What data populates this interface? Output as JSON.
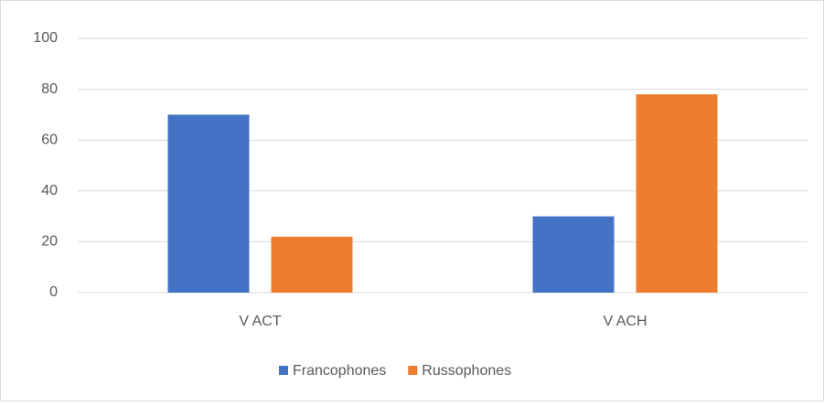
{
  "chart_data": {
    "type": "bar",
    "categories": [
      "V ACT",
      "V ACH"
    ],
    "series": [
      {
        "name": "Francophones",
        "color": "#4472c4",
        "values": [
          70,
          30
        ]
      },
      {
        "name": "Russophones",
        "color": "#ed7d31",
        "values": [
          22,
          78
        ]
      }
    ],
    "ylim": [
      0,
      100
    ],
    "yticks": [
      0,
      20,
      40,
      60,
      80,
      100
    ],
    "grid": true,
    "legend": "bottom"
  }
}
